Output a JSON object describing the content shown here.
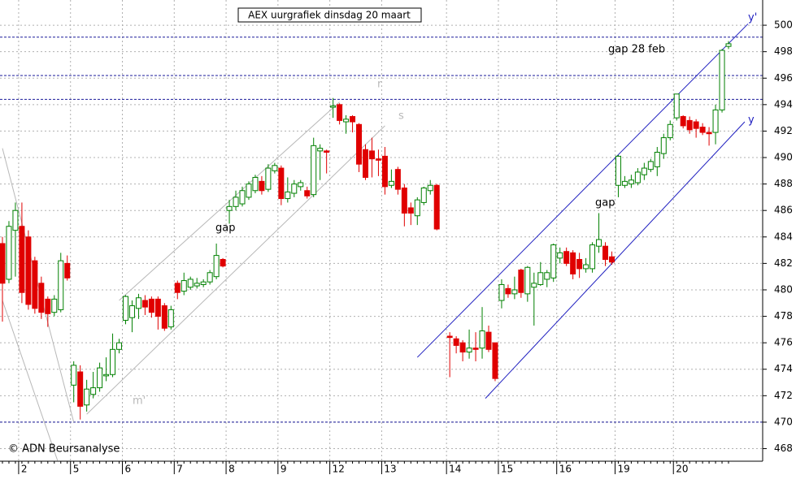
{
  "chart_data": {
    "type": "candlestick",
    "title": "AEX uurgrafiek dinsdag 20 maart",
    "copyright": "© ADN Beursanalyse",
    "annotations": [
      "gap",
      "gap",
      "gap 28 feb",
      "r",
      "s",
      "m'",
      "y",
      "y'"
    ],
    "categories": [
      null,
      null,
      null,
      "2",
      null,
      null,
      null,
      null,
      null,
      null,
      null,
      "5",
      null,
      null,
      null,
      null,
      null,
      null,
      null,
      "6",
      null,
      null,
      null,
      null,
      null,
      null,
      null,
      "7",
      null,
      null,
      null,
      null,
      null,
      null,
      null,
      "8",
      null,
      null,
      null,
      null,
      null,
      null,
      null,
      "9",
      null,
      null,
      null,
      null,
      null,
      null,
      null,
      "12",
      null,
      null,
      null,
      null,
      null,
      null,
      null,
      "13",
      null,
      null,
      null,
      null,
      null,
      null,
      null,
      null,
      null,
      "14",
      null,
      null,
      null,
      null,
      null,
      null,
      null,
      "15",
      null,
      null,
      null,
      null,
      null,
      null,
      null,
      null,
      "16",
      null,
      null,
      null,
      null,
      null,
      null,
      null,
      null,
      "19",
      null,
      null,
      null,
      null,
      null,
      null,
      null,
      null,
      "20",
      null,
      null,
      null,
      null,
      null,
      null,
      null,
      null
    ],
    "open": [
      483.5,
      480.8,
      484.5,
      484.8,
      484,
      482.2,
      480.5,
      479.3,
      478.3,
      478.5,
      482,
      472.8,
      473.8,
      471.3,
      472.1,
      472.6,
      473.5,
      473.6,
      475.5,
      477.7,
      477.9,
      478.6,
      479.2,
      479.3,
      479.3,
      478.8,
      477.2,
      480.5,
      479.9,
      480.2,
      480.3,
      480.4,
      480.6,
      481,
      482.3,
      486,
      486.3,
      486.5,
      487,
      487.5,
      488.2,
      487.6,
      489,
      489.2,
      486.9,
      487.3,
      487.8,
      487.5,
      487.2,
      490.5,
      490.5,
      493.8,
      494,
      492.7,
      493.1,
      492.5,
      490.6,
      490.5,
      489.9,
      490.1,
      487.9,
      489.1,
      487.7,
      486.2,
      485.6,
      486.6,
      487.5,
      487.9,
      null,
      476.5,
      476.3,
      476,
      475.3,
      475.6,
      475.6,
      476.8,
      476,
      479.2,
      480.1,
      479.7,
      481.5,
      479.7,
      480.2,
      480.4,
      480.8,
      480.9,
      482.4,
      482.9,
      482.8,
      482.3,
      481.6,
      481.6,
      483.3,
      483.3,
      482.5,
      487.9,
      487.9,
      488,
      488.1,
      488.7,
      489.1,
      489.3,
      490.3,
      491.5,
      493,
      493.1,
      492.8,
      492.7,
      492.3,
      491.9,
      491.9,
      493.6,
      498.4
    ],
    "high": [
      484,
      485.2,
      486.6,
      486.6,
      484.5,
      482.5,
      481,
      479.5,
      479.6,
      482.8,
      482.6,
      474.6,
      474.3,
      473.2,
      473.8,
      474.5,
      474.9,
      476.7,
      476.3,
      479.6,
      479.2,
      479.7,
      479.6,
      479.5,
      479.5,
      479,
      478.8,
      480.7,
      481.3,
      481,
      480.9,
      480.8,
      481.5,
      483.5,
      482.4,
      486.8,
      487.5,
      487.8,
      488.2,
      488.7,
      488.6,
      489.5,
      489.6,
      489.4,
      488.5,
      488.3,
      488.3,
      487.8,
      491.5,
      491,
      490.6,
      494.5,
      494.1,
      493.2,
      493.2,
      492.6,
      491,
      491.5,
      490.6,
      490.8,
      489.1,
      489.3,
      488,
      486.6,
      487,
      487.8,
      488.3,
      488,
      null,
      476.8,
      476.5,
      476.2,
      477,
      476.8,
      478.7,
      477.3,
      476,
      480.8,
      480.4,
      481,
      481.6,
      481.8,
      481.3,
      482.1,
      481.5,
      483.5,
      483.2,
      483.2,
      483,
      482.8,
      482.4,
      483.6,
      485.8,
      483.6,
      482.9,
      490.2,
      488.6,
      488.7,
      489.2,
      489.6,
      489.9,
      490.8,
      491.8,
      492.8,
      494.8,
      493.2,
      493.1,
      492.9,
      492.6,
      492.3,
      494,
      498.2,
      498.8
    ],
    "low": [
      477.6,
      480.5,
      481,
      479,
      478.5,
      478.2,
      477.8,
      477.2,
      478,
      478.3,
      480.7,
      471.5,
      470.2,
      470.8,
      471.8,
      472.3,
      473.1,
      473.4,
      475.2,
      477.4,
      476.8,
      477.8,
      478.1,
      477.9,
      477,
      476.9,
      477,
      479.3,
      479.6,
      480,
      480.1,
      480.2,
      480.4,
      480.8,
      481.7,
      485,
      486,
      486.3,
      486.8,
      487.3,
      487.2,
      487.4,
      488.8,
      486.4,
      486.6,
      487,
      487.5,
      486.9,
      487,
      488.3,
      488.8,
      493,
      492.5,
      491.8,
      491.9,
      488.9,
      488.3,
      488.5,
      488.6,
      487.2,
      487.7,
      487.2,
      484.8,
      484.9,
      484.9,
      486.4,
      487.2,
      484.5,
      null,
      473.4,
      475.2,
      474.6,
      474.8,
      474.6,
      474.8,
      475.3,
      473.1,
      478.6,
      479.4,
      479.3,
      479.4,
      479.1,
      477.3,
      480.3,
      480.2,
      480.6,
      482,
      481.8,
      480.8,
      480.9,
      481.3,
      481.3,
      482.8,
      481.8,
      481.9,
      487,
      487.7,
      487.7,
      487.9,
      488.3,
      488.9,
      488.6,
      489.9,
      491.3,
      492.8,
      492.2,
      491.8,
      491.5,
      491.7,
      490.9,
      491,
      493.4,
      498.2
    ],
    "close": [
      480.5,
      484.8,
      486,
      479.8,
      478.9,
      478.6,
      478.3,
      478.2,
      479.3,
      482.2,
      480.9,
      474.3,
      471.2,
      472.5,
      472.6,
      474.1,
      473.6,
      475.5,
      476,
      479.5,
      478.8,
      479.4,
      478.7,
      478.3,
      478,
      477.1,
      478.5,
      479.8,
      480.7,
      480.8,
      480.5,
      480.6,
      481.3,
      482.6,
      481.8,
      486.3,
      487,
      487.5,
      488,
      488.5,
      487.5,
      489.2,
      489.4,
      486.9,
      487.4,
      488,
      488.1,
      487.1,
      490.9,
      490.7,
      490.4,
      493.9,
      492.8,
      492.9,
      492.7,
      489.5,
      488.5,
      489.9,
      489.8,
      487.8,
      488.2,
      487.6,
      485.8,
      485.8,
      486.8,
      487.7,
      487.9,
      484.6,
      null,
      476.4,
      475.8,
      475.3,
      475.6,
      475.5,
      476.9,
      475.5,
      473.3,
      480.4,
      479.7,
      480,
      479.8,
      481.7,
      480.5,
      481.3,
      481.3,
      483.4,
      482.8,
      482,
      481.2,
      481.6,
      481.9,
      483.4,
      483.8,
      482.3,
      482.1,
      490.1,
      488.2,
      488.3,
      488.9,
      489.2,
      489.7,
      490.4,
      491.5,
      492.5,
      494.8,
      492.4,
      492.1,
      492.2,
      491.9,
      491.8,
      493.6,
      498.1,
      498.6
    ],
    "up_color": "#008000",
    "down_color": "#e00000",
    "levels": [
      499.1,
      496.2,
      494.4,
      470
    ],
    "level_color": "#1a1a9a",
    "trend_lines": [
      {
        "color": "#b8b8b8",
        "points": [
          [
            0,
            490.7
          ],
          [
            11,
            470
          ]
        ]
      },
      {
        "color": "#b8b8b8",
        "points": [
          [
            0,
            479.2
          ],
          [
            8.5,
            467.1
          ]
        ]
      },
      {
        "color": "#b8b8b8",
        "points": [
          [
            13,
            470.6
          ],
          [
            59,
            492.4
          ]
        ]
      },
      {
        "color": "#b8b8b8",
        "points": [
          [
            18,
            479.2
          ],
          [
            52,
            494.2
          ]
        ]
      },
      {
        "color": "#2020c0",
        "points": [
          [
            64,
            474.9
          ],
          [
            115,
            500.1
          ]
        ]
      },
      {
        "color": "#2020c0",
        "points": [
          [
            74.5,
            471.8
          ],
          [
            114.5,
            492.7
          ]
        ]
      }
    ],
    "ylim": [
      467.05,
      501.6
    ],
    "yticks": [
      468,
      470,
      472,
      474,
      476,
      478,
      480,
      482,
      484,
      486,
      488,
      490,
      492,
      494,
      496,
      498,
      500
    ],
    "grid": true
  }
}
